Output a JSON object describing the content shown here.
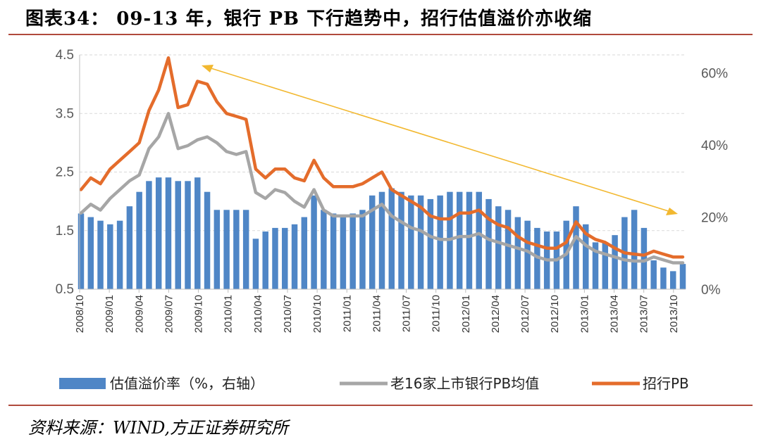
{
  "figure": {
    "title": "图表34：  09-13 年，银行 PB 下行趋势中，招行估值溢价亦收缩",
    "source": "资料来源：WIND,方正证券研究所"
  },
  "chart_data": {
    "type": "bar+line",
    "x_tick_labels": [
      "2008/10",
      "2009/01",
      "2009/04",
      "2009/07",
      "2009/10",
      "2010/01",
      "2010/04",
      "2010/07",
      "2010/10",
      "2011/01",
      "2011/04",
      "2011/07",
      "2011/10",
      "2012/01",
      "2012/04",
      "2012/07",
      "2012/10",
      "2013/01",
      "2013/04",
      "2013/07",
      "2013/10"
    ],
    "y_left": {
      "ticks": [
        "0.5",
        "1.5",
        "2.5",
        "3.5",
        "4.5"
      ],
      "range": [
        0.5,
        4.5
      ]
    },
    "y_right": {
      "ticks": [
        "0%",
        "20%",
        "40%",
        "60%"
      ],
      "range": [
        0,
        0.65
      ]
    },
    "grid": true,
    "legend_position": "bottom",
    "series": [
      {
        "name": "估值溢价率（%，右轴）",
        "type": "bar",
        "axis": "right",
        "color": "#4f86c6",
        "x": [
          "2008/10",
          "2008/11",
          "2008/12",
          "2009/01",
          "2009/02",
          "2009/03",
          "2009/04",
          "2009/05",
          "2009/06",
          "2009/07",
          "2009/08",
          "2009/09",
          "2009/10",
          "2009/11",
          "2009/12",
          "2010/01",
          "2010/02",
          "2010/03",
          "2010/04",
          "2010/05",
          "2010/06",
          "2010/07",
          "2010/08",
          "2010/09",
          "2010/10",
          "2010/11",
          "2010/12",
          "2011/01",
          "2011/02",
          "2011/03",
          "2011/04",
          "2011/05",
          "2011/06",
          "2011/07",
          "2011/08",
          "2011/09",
          "2011/10",
          "2011/11",
          "2011/12",
          "2012/01",
          "2012/02",
          "2012/03",
          "2012/04",
          "2012/05",
          "2012/06",
          "2012/07",
          "2012/08",
          "2012/09",
          "2012/10",
          "2012/11",
          "2012/12",
          "2013/01",
          "2013/02",
          "2013/03",
          "2013/04",
          "2013/05",
          "2013/06",
          "2013/07",
          "2013/08",
          "2013/09",
          "2013/10",
          "2013/11",
          "2013/12"
        ],
        "values": [
          0.21,
          0.2,
          0.19,
          0.18,
          0.19,
          0.23,
          0.27,
          0.3,
          0.31,
          0.31,
          0.3,
          0.3,
          0.31,
          0.27,
          0.22,
          0.22,
          0.22,
          0.22,
          0.14,
          0.16,
          0.17,
          0.17,
          0.18,
          0.2,
          0.26,
          0.22,
          0.21,
          0.2,
          0.21,
          0.22,
          0.26,
          0.27,
          0.28,
          0.27,
          0.26,
          0.26,
          0.25,
          0.26,
          0.27,
          0.27,
          0.27,
          0.27,
          0.25,
          0.23,
          0.22,
          0.2,
          0.19,
          0.17,
          0.16,
          0.16,
          0.19,
          0.23,
          0.18,
          0.13,
          0.13,
          0.15,
          0.2,
          0.22,
          0.17,
          0.08,
          0.06,
          0.05,
          0.07
        ]
      },
      {
        "name": "老16家上市银行PB均值",
        "type": "line",
        "axis": "left",
        "color": "#a6a6a6",
        "x": [
          "2008/10",
          "2008/11",
          "2008/12",
          "2009/01",
          "2009/02",
          "2009/03",
          "2009/04",
          "2009/05",
          "2009/06",
          "2009/07",
          "2009/08",
          "2009/09",
          "2009/10",
          "2009/11",
          "2009/12",
          "2010/01",
          "2010/02",
          "2010/03",
          "2010/04",
          "2010/05",
          "2010/06",
          "2010/07",
          "2010/08",
          "2010/09",
          "2010/10",
          "2010/11",
          "2010/12",
          "2011/01",
          "2011/02",
          "2011/03",
          "2011/04",
          "2011/05",
          "2011/06",
          "2011/07",
          "2011/08",
          "2011/09",
          "2011/10",
          "2011/11",
          "2011/12",
          "2012/01",
          "2012/02",
          "2012/03",
          "2012/04",
          "2012/05",
          "2012/06",
          "2012/07",
          "2012/08",
          "2012/09",
          "2012/10",
          "2012/11",
          "2012/12",
          "2013/01",
          "2013/02",
          "2013/03",
          "2013/04",
          "2013/05",
          "2013/06",
          "2013/07",
          "2013/08",
          "2013/09",
          "2013/10",
          "2013/11",
          "2013/12"
        ],
        "values": [
          1.8,
          1.95,
          1.85,
          2.05,
          2.2,
          2.35,
          2.45,
          2.9,
          3.1,
          3.5,
          2.9,
          2.95,
          3.05,
          3.1,
          3.0,
          2.85,
          2.8,
          2.85,
          2.15,
          2.05,
          2.2,
          2.15,
          2.0,
          1.9,
          2.2,
          1.85,
          1.75,
          1.75,
          1.75,
          1.75,
          1.85,
          1.95,
          1.75,
          1.65,
          1.55,
          1.5,
          1.4,
          1.35,
          1.35,
          1.4,
          1.4,
          1.45,
          1.35,
          1.3,
          1.25,
          1.2,
          1.15,
          1.05,
          1.0,
          1.0,
          1.1,
          1.4,
          1.25,
          1.15,
          1.1,
          1.05,
          1.0,
          0.98,
          0.98,
          1.05,
          1.0,
          0.95,
          0.95
        ]
      },
      {
        "name": "招行PB",
        "type": "line",
        "axis": "left",
        "color": "#e46c2b",
        "x": [
          "2008/10",
          "2008/11",
          "2008/12",
          "2009/01",
          "2009/02",
          "2009/03",
          "2009/04",
          "2009/05",
          "2009/06",
          "2009/07",
          "2009/08",
          "2009/09",
          "2009/10",
          "2009/11",
          "2009/12",
          "2010/01",
          "2010/02",
          "2010/03",
          "2010/04",
          "2010/05",
          "2010/06",
          "2010/07",
          "2010/08",
          "2010/09",
          "2010/10",
          "2010/11",
          "2010/12",
          "2011/01",
          "2011/02",
          "2011/03",
          "2011/04",
          "2011/05",
          "2011/06",
          "2011/07",
          "2011/08",
          "2011/09",
          "2011/10",
          "2011/11",
          "2011/12",
          "2012/01",
          "2012/02",
          "2012/03",
          "2012/04",
          "2012/05",
          "2012/06",
          "2012/07",
          "2012/08",
          "2012/09",
          "2012/10",
          "2012/11",
          "2012/12",
          "2013/01",
          "2013/02",
          "2013/03",
          "2013/04",
          "2013/05",
          "2013/06",
          "2013/07",
          "2013/08",
          "2013/09",
          "2013/10",
          "2013/11",
          "2013/12"
        ],
        "values": [
          2.2,
          2.4,
          2.3,
          2.55,
          2.7,
          2.85,
          3.0,
          3.55,
          3.9,
          4.45,
          3.6,
          3.65,
          4.05,
          4.0,
          3.7,
          3.5,
          3.45,
          3.4,
          2.55,
          2.4,
          2.55,
          2.55,
          2.4,
          2.35,
          2.7,
          2.4,
          2.25,
          2.25,
          2.25,
          2.3,
          2.4,
          2.5,
          2.2,
          2.1,
          2.0,
          1.9,
          1.75,
          1.7,
          1.7,
          1.8,
          1.8,
          1.85,
          1.7,
          1.6,
          1.55,
          1.4,
          1.3,
          1.25,
          1.2,
          1.2,
          1.3,
          1.65,
          1.45,
          1.35,
          1.3,
          1.2,
          1.12,
          1.1,
          1.08,
          1.15,
          1.1,
          1.05,
          1.05
        ]
      }
    ],
    "annotation": {
      "type": "arrow",
      "direction": "down-right",
      "color": "#f2b830"
    }
  }
}
